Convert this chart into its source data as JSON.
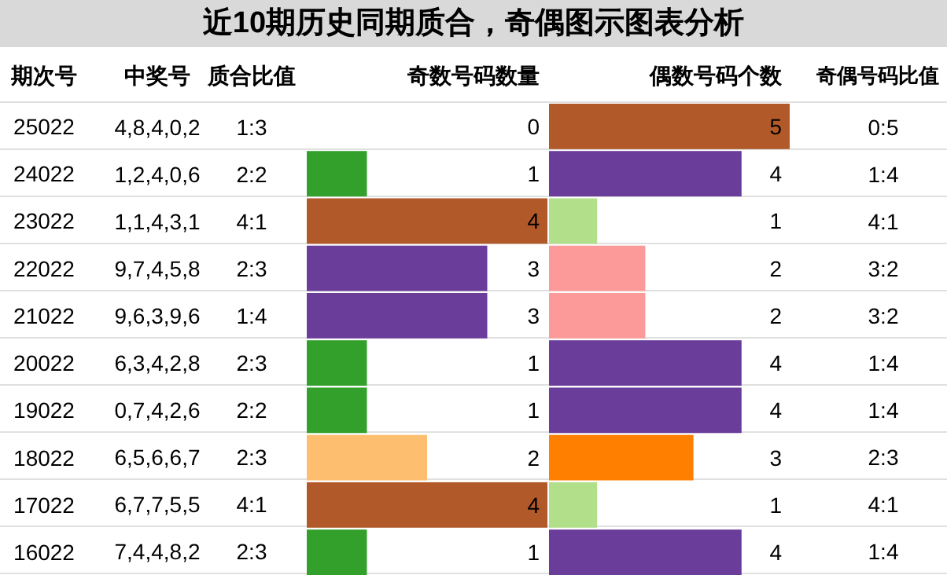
{
  "chart_data": [
    {
      "type": "other",
      "title": "近10期历史同期质合，奇偶图示图表分析",
      "annotations": [
        "中奖号",
        "质合比值",
        "4,8,4,0,2",
        "1:3",
        "1,2,4,0,6",
        "2:2",
        "1,1,4,3,1",
        "4:1",
        "9,7,4,5,8",
        "2:3",
        "9,6,3,9,6",
        "1:4",
        "6,3,4,2,8",
        "2:3",
        "0,7,4,2,6",
        "2:2",
        "6,5,6,6,7",
        "2:3",
        "6,7,7,5,5",
        "4:1",
        "7,4,4,8,2",
        "2:3"
      ]
    },
    {
      "type": "bar",
      "orientation": "horizontal",
      "title": "奇数号码数量",
      "ylabel": "期次号",
      "categories": [
        "25022",
        "24022",
        "23022",
        "22022",
        "21022",
        "20022",
        "19022",
        "18022",
        "17022",
        "16022"
      ],
      "values": [
        0,
        1,
        4,
        3,
        3,
        1,
        1,
        2,
        4,
        1
      ],
      "colors": [
        "#a6cee3",
        "#33a02c",
        "#b15928",
        "#6a3d9a",
        "#6a3d9a",
        "#33a02c",
        "#33a02c",
        "#fdbf6f",
        "#b15928",
        "#33a02c"
      ],
      "xlim": [
        0,
        4
      ],
      "data_labels": true,
      "tick_labels": "y"
    },
    {
      "type": "bar",
      "orientation": "horizontal",
      "title": "偶数号码个数",
      "categories": [
        "25022",
        "24022",
        "23022",
        "22022",
        "21022",
        "20022",
        "19022",
        "18022",
        "17022",
        "16022"
      ],
      "values": [
        5,
        4,
        1,
        2,
        2,
        4,
        4,
        3,
        1,
        4
      ],
      "colors": [
        "#b15928",
        "#6a3d9a",
        "#b2df8a",
        "#fb9a99",
        "#fb9a99",
        "#6a3d9a",
        "#6a3d9a",
        "#ff7f00",
        "#b2df8a",
        "#6a3d9a"
      ],
      "xlim": [
        0,
        5
      ],
      "data_labels": true,
      "tick_labels": false
    },
    {
      "type": "other",
      "title": "奇偶号码比值",
      "annotations": [
        "0:5",
        "1:4",
        "4:1",
        "3:2",
        "3:2",
        "1:4",
        "1:4",
        "2:3",
        "4:1",
        "1:4"
      ]
    }
  ]
}
